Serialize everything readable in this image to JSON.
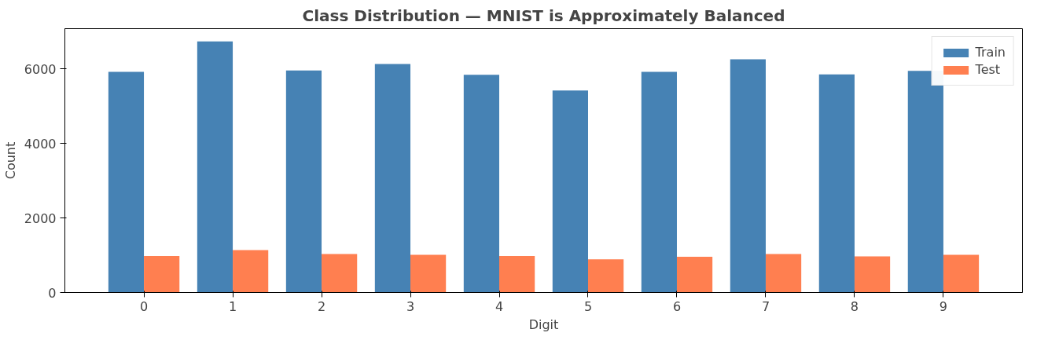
{
  "chart_data": {
    "type": "bar",
    "title": "Class Distribution — MNIST is Approximately Balanced",
    "xlabel": "Digit",
    "ylabel": "Count",
    "categories": [
      "0",
      "1",
      "2",
      "3",
      "4",
      "5",
      "6",
      "7",
      "8",
      "9"
    ],
    "series": [
      {
        "name": "Train",
        "color": "#4682b4",
        "values": [
          5920,
          6740,
          5960,
          6130,
          5840,
          5420,
          5920,
          6260,
          5850,
          5950
        ]
      },
      {
        "name": "Test",
        "color": "#ff7f50",
        "values": [
          980,
          1140,
          1030,
          1010,
          980,
          890,
          960,
          1030,
          970,
          1010
        ]
      }
    ],
    "ylim": [
      0,
      7080
    ],
    "yticks": [
      0,
      2000,
      4000,
      6000
    ],
    "grid": false,
    "legend": "top right"
  }
}
